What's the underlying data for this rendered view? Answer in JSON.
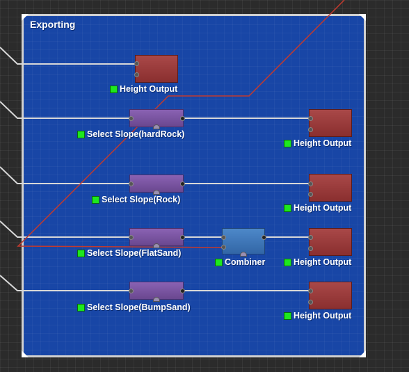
{
  "group": {
    "title": "Exporting"
  },
  "nodes": {
    "output_1": {
      "label": "Height Output"
    },
    "slope_hardrock": {
      "label": "Select Slope(hardRock)"
    },
    "output_2": {
      "label": "Height Output"
    },
    "slope_rock": {
      "label": "Select Slope(Rock)"
    },
    "output_3": {
      "label": "Height Output"
    },
    "slope_flatsand": {
      "label": "Select Slope(FlatSand)"
    },
    "combiner": {
      "label": "Combiner"
    },
    "output_4": {
      "label": "Height Output"
    },
    "slope_bumpsand": {
      "label": "Select Slope(BumpSand)"
    },
    "output_5": {
      "label": "Height Output"
    }
  },
  "colors": {
    "group_fill": "#1846a6",
    "output_node": "#9a3c3c",
    "slope_node": "#7a56a3",
    "combiner_node": "#3f79bb",
    "status_ok": "#1ee81e",
    "wire": "#d8d8d8",
    "selection_wire": "#c23a2e"
  }
}
